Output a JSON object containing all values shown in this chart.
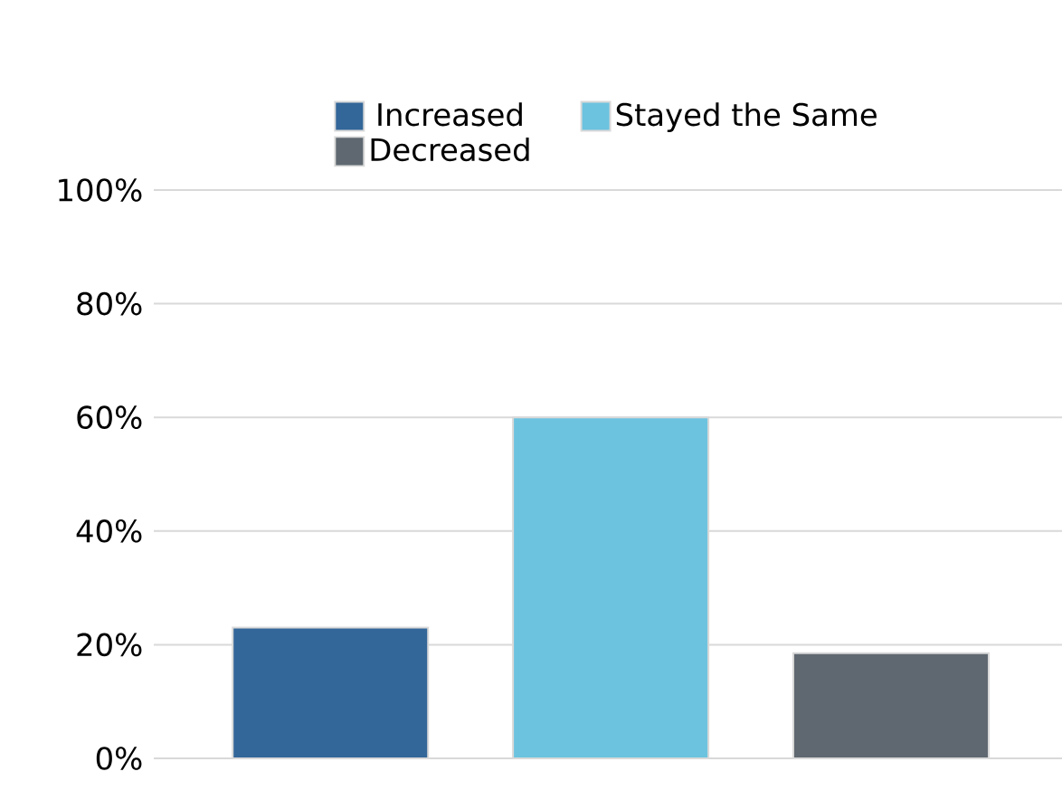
{
  "chart_data": {
    "type": "bar",
    "categories": [
      null,
      null,
      null
    ],
    "series": [
      {
        "name": "Increased",
        "color": "#336699",
        "values": [
          23,
          null,
          null
        ]
      },
      {
        "name": "Stayed the Same",
        "color": "#6cc3df",
        "values": [
          null,
          60,
          null
        ]
      },
      {
        "name": "Decreased",
        "color": "#5f6870",
        "values": [
          null,
          null,
          18.5
        ]
      }
    ],
    "ylim": [
      0,
      100
    ],
    "yticks": [
      {
        "value": 0,
        "label": "0%"
      },
      {
        "value": 20,
        "label": "20%"
      },
      {
        "value": 40,
        "label": "40%"
      },
      {
        "value": 60,
        "label": "60%"
      },
      {
        "value": 80,
        "label": "80%"
      },
      {
        "value": 100,
        "label": "100%"
      }
    ],
    "grid": "y",
    "legend": "top"
  }
}
